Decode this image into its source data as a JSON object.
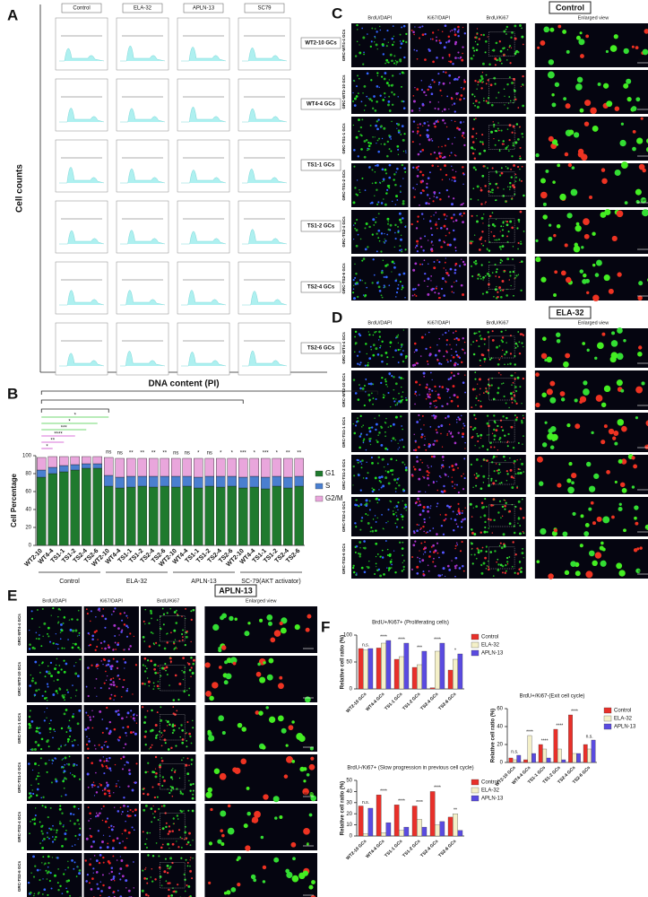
{
  "panel_labels": [
    "A",
    "B",
    "C",
    "D",
    "E",
    "F"
  ],
  "panel_a": {
    "columns": [
      "Control",
      "ELA-32",
      "APLN-13",
      "SC79"
    ],
    "rows": [
      "WT2-10 GCs",
      "WT4-4 GCs",
      "TS1-1 GCs",
      "TS1-2 GCs",
      "TS2-4 GCs",
      "TS2-6 GCs"
    ],
    "y_label": "Cell counts",
    "x_label": "DNA content (PI)"
  },
  "micro": [
    {
      "title": "Control",
      "columns": [
        "BrdU/DAPI",
        "Ki67/DAPI",
        "BrdU/Ki67",
        "Enlarged view"
      ],
      "rows": [
        "GRC-WT4-4 GCs",
        "GRC-WT2-10 GCs",
        "GRC-TS1-1 GCs",
        "GRC-TS1-2 GCs",
        "GRC-TS2-4 GCs",
        "GRC-TS2-6 GCs"
      ],
      "scale": "50 µm"
    },
    {
      "title": "ELA-32",
      "columns": [
        "BrdU/DAPI",
        "Ki67/DAPI",
        "BrdU/Ki67",
        "Enlarged view"
      ],
      "rows": [
        "GRC-WT4-4 GCs",
        "GRC-WT2-10 GCs",
        "GRC-TS1-1 GCs",
        "GRC-TS1-2 GCs",
        "GRC-TS2-4 GCs",
        "GRC-TS2-6 GCs"
      ],
      "scale": "50 µm"
    },
    {
      "title": "APLN-13",
      "columns": [
        "BrdU/DAPI",
        "Ki67/DAPI",
        "BrdU/Ki67",
        "Enlarged view"
      ],
      "rows": [
        "GRC-WT4-4 GCs",
        "GRC-WT2-10 GCs",
        "GRC-TS1-1 GCs",
        "GRC-TS1-2 GCs",
        "GRC-TS2-4 GCs",
        "GRC-TS2-6 GCs"
      ],
      "scale": "50 µm"
    }
  ],
  "chart_data": [
    {
      "type": "stacked_bar",
      "y_label": "Cell Percentage",
      "categories": [
        "WT2-10",
        "WT4-4",
        "TS1-1",
        "TS1-2",
        "TS2-4",
        "TS2-6",
        "WT2-10",
        "WT4-4",
        "TS1-1",
        "TS1-2",
        "TS2-4",
        "TS2-6",
        "WT2-10",
        "WT4-4",
        "TS1-1",
        "TS1-2",
        "TS2-4",
        "TS2-6",
        "WT2-10",
        "WT4-4",
        "TS1-1",
        "TS1-2",
        "TS2-4",
        "TS2-6"
      ],
      "groups": [
        "Control",
        "ELA-32",
        "APLN-13",
        "SC-79(AKT activator)"
      ],
      "series": [
        {
          "name": "G1",
          "color": "#1f7a2e",
          "values": [
            76,
            80,
            82,
            84,
            86,
            86,
            66,
            64,
            65,
            66,
            65,
            66,
            65,
            66,
            64,
            66,
            65,
            66,
            64,
            65,
            63,
            66,
            64,
            66
          ]
        },
        {
          "name": "S",
          "color": "#4a7fd0",
          "values": [
            8,
            7,
            7,
            6,
            5,
            5,
            12,
            12,
            12,
            11,
            12,
            11,
            12,
            11,
            12,
            11,
            12,
            11,
            12,
            12,
            13,
            11,
            12,
            11
          ]
        },
        {
          "name": "G2/M",
          "color": "#e9a6dc",
          "values": [
            14,
            12,
            10,
            9,
            8,
            8,
            20,
            21,
            20,
            20,
            20,
            20,
            20,
            20,
            21,
            20,
            20,
            20,
            21,
            20,
            21,
            20,
            21,
            20
          ]
        }
      ],
      "bar_annotations": [
        null,
        null,
        null,
        null,
        null,
        null,
        "ns",
        "ns",
        "**",
        "**",
        "**",
        "**",
        "ns",
        "ns",
        "*",
        "ns",
        "*",
        "*",
        "***",
        "*",
        "***",
        "*",
        "**",
        "**"
      ],
      "comparison_labels": [
        "*",
        "**",
        "****",
        "***",
        "*",
        "*"
      ],
      "ylim": [
        0,
        100
      ],
      "yticks": [
        0,
        20,
        40,
        60,
        80,
        100
      ]
    },
    {
      "type": "grouped_bar",
      "title": "BrdU+/Ki67+ (Proliferating cells)",
      "y_label": "Relative cell ratio (%)",
      "categories": [
        "WT2-10 GCs",
        "WT4-4 GCs",
        "TS1-1 GCs",
        "TS1-2 GCs",
        "TS2-4 GCs",
        "TS2-6 GCs"
      ],
      "series": [
        {
          "name": "Control",
          "color": "#e8302a",
          "values": [
            75,
            76,
            55,
            40,
            2,
            35
          ]
        },
        {
          "name": "ELA-32",
          "color": "#f4f0c8",
          "values": [
            72,
            85,
            60,
            45,
            70,
            55
          ]
        },
        {
          "name": "APLN-13",
          "color": "#5a4be0",
          "values": [
            75,
            90,
            85,
            70,
            85,
            65
          ]
        }
      ],
      "annotations": [
        "n.s.",
        "****",
        "****",
        "***",
        "****",
        "*"
      ],
      "ylim": [
        0,
        100
      ],
      "yticks": [
        0,
        50,
        100
      ]
    },
    {
      "type": "grouped_bar",
      "title": "BrdU+/Ki67-(Exit cell cycle)",
      "y_label": "Relative cell ratio (%)",
      "categories": [
        "WT2-10 GCs",
        "WT4-4 GCs",
        "TS1-1 GCs",
        "TS1-2 GCs",
        "TS2-4 GCs",
        "TS2-6 GCs"
      ],
      "series": [
        {
          "name": "Control",
          "color": "#e8302a",
          "values": [
            5,
            3,
            20,
            37,
            53,
            20
          ]
        },
        {
          "name": "ELA-32",
          "color": "#f4f0c8",
          "values": [
            3,
            30,
            15,
            15,
            10,
            15
          ]
        },
        {
          "name": "APLN-13",
          "color": "#5a4be0",
          "values": [
            8,
            10,
            5,
            3,
            10,
            25
          ]
        }
      ],
      "annotations": [
        "n.s.",
        "****",
        "****",
        "****",
        "****",
        "n.s."
      ],
      "ylim": [
        0,
        60
      ],
      "yticks": [
        0,
        20,
        40,
        60
      ]
    },
    {
      "type": "grouped_bar",
      "title": "BrdU-/Ki67+ (Slow progression in previous cell cycle)",
      "y_label": "Relative cell ratio (%)",
      "categories": [
        "WT2-10 GCs",
        "WT4-4 GCs",
        "TS1-1 GCs",
        "TS1-2 GCs",
        "TS2-4 GCs",
        "TS2-6 GCs"
      ],
      "series": [
        {
          "name": "Control",
          "color": "#e8302a",
          "values": [
            27,
            37,
            28,
            27,
            40,
            17
          ]
        },
        {
          "name": "ELA-32",
          "color": "#f4f0c8",
          "values": [
            2,
            3,
            5,
            15,
            10,
            20
          ]
        },
        {
          "name": "APLN-13",
          "color": "#5a4be0",
          "values": [
            25,
            12,
            8,
            8,
            13,
            5
          ]
        }
      ],
      "annotations": [
        "n.s.",
        "****",
        "****",
        "****",
        "****",
        "**"
      ],
      "ylim": [
        0,
        50
      ],
      "yticks": [
        0,
        10,
        20,
        30,
        40,
        50
      ]
    }
  ]
}
